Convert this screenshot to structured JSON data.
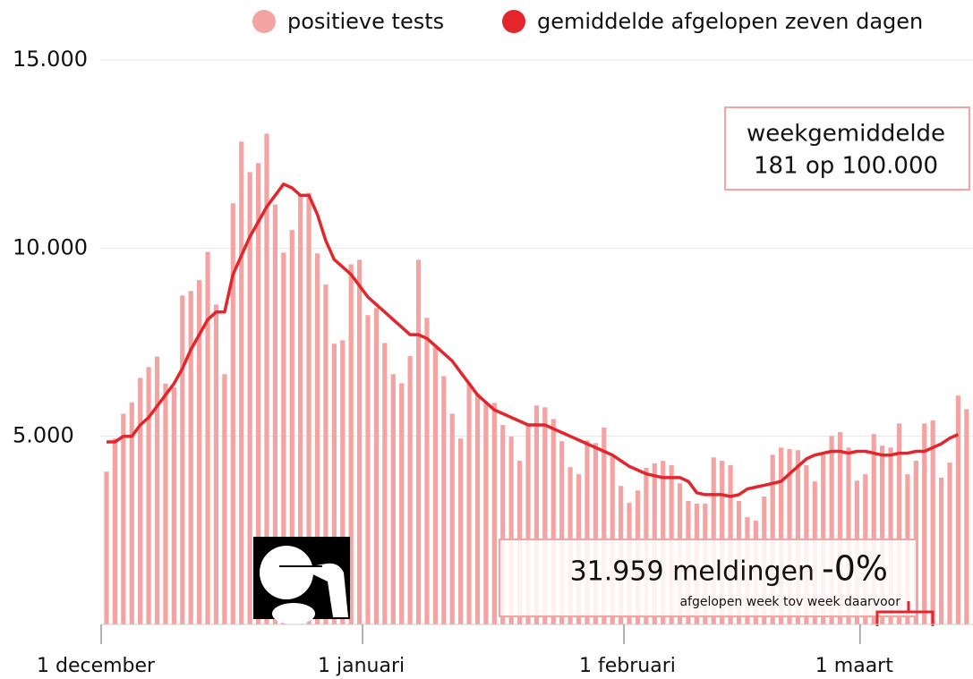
{
  "chart_data": {
    "type": "bar+line",
    "categories": [
      "1 december",
      null,
      null,
      null,
      null,
      null,
      null,
      null,
      null,
      null,
      null,
      null,
      null,
      null,
      null,
      null,
      null,
      null,
      null,
      null,
      null,
      null,
      null,
      null,
      null,
      null,
      null,
      null,
      null,
      null,
      null,
      "1 januari",
      null,
      null,
      null,
      null,
      null,
      null,
      null,
      null,
      null,
      null,
      null,
      null,
      null,
      null,
      null,
      null,
      null,
      null,
      null,
      null,
      null,
      null,
      null,
      null,
      null,
      null,
      null,
      null,
      null,
      null,
      "1 februari",
      null,
      null,
      null,
      null,
      null,
      null,
      null,
      null,
      null,
      null,
      null,
      null,
      null,
      null,
      null,
      null,
      null,
      null,
      null,
      null,
      null,
      null,
      null,
      null,
      null,
      null,
      null,
      "1 maart",
      null,
      null,
      null,
      null,
      null,
      null,
      null,
      null,
      null,
      null,
      null,
      null
    ],
    "series": [
      {
        "name": "positieve tests",
        "color": "#f4a3a3",
        "kind": "bar",
        "values": [
          4060,
          4940,
          5600,
          5900,
          6550,
          6840,
          7120,
          6400,
          6300,
          8740,
          8860,
          9150,
          9900,
          8500,
          6650,
          11190,
          12830,
          12020,
          12260,
          13040,
          11160,
          9880,
          10480,
          11430,
          11470,
          9860,
          9030,
          7460,
          7550,
          9570,
          9690,
          8220,
          8410,
          7480,
          6650,
          6410,
          7130,
          9690,
          8150,
          7360,
          6600,
          5600,
          4940,
          6410,
          6130,
          5890,
          5890,
          5300,
          4990,
          4350,
          5340,
          5820,
          5770,
          5460,
          4870,
          4180,
          3990,
          4890,
          4820,
          5230,
          4470,
          3680,
          3230,
          3560,
          4160,
          4280,
          4350,
          4230,
          3750,
          3280,
          3210,
          3210,
          4440,
          4350,
          4230,
          3280,
          2850,
          2760,
          3400,
          4510,
          4700,
          4660,
          4630,
          4230,
          3800,
          4510,
          5010,
          5110,
          4700,
          3820,
          3990,
          5060,
          4750,
          4700,
          5340,
          3990,
          4350,
          5340,
          5420,
          3900,
          4300,
          6080,
          5720
        ]
      },
      {
        "name": "gemiddelde afgelopen zeven dagen",
        "color": "#e3262b",
        "kind": "line",
        "values": [
          4850,
          4850,
          5000,
          5000,
          5300,
          5500,
          5800,
          6100,
          6400,
          6800,
          7300,
          7700,
          8100,
          8300,
          8300,
          9300,
          9800,
          10300,
          10700,
          11100,
          11400,
          11700,
          11600,
          11400,
          11400,
          10900,
          10200,
          9700,
          9500,
          9300,
          9000,
          8700,
          8500,
          8300,
          8100,
          7900,
          7700,
          7700,
          7600,
          7400,
          7200,
          7000,
          6700,
          6400,
          6100,
          5900,
          5700,
          5600,
          5500,
          5400,
          5300,
          5300,
          5300,
          5200,
          5100,
          5000,
          4900,
          4800,
          4700,
          4600,
          4500,
          4350,
          4200,
          4100,
          4000,
          3950,
          3900,
          3900,
          3900,
          3800,
          3500,
          3450,
          3450,
          3450,
          3400,
          3450,
          3600,
          3650,
          3700,
          3750,
          3800,
          4000,
          4200,
          4400,
          4500,
          4550,
          4600,
          4600,
          4550,
          4600,
          4600,
          4550,
          4500,
          4500,
          4550,
          4550,
          4600,
          4600,
          4700,
          4800,
          4950,
          5050,
          null
        ]
      }
    ],
    "ylim": [
      0,
      15000
    ],
    "yticks": [
      {
        "value": 5000,
        "label": "5.000"
      },
      {
        "value": 10000,
        "label": "10.000"
      },
      {
        "value": 15000,
        "label": "15.000"
      }
    ],
    "grid": true,
    "legend": "top",
    "annotations": [
      "weekgemiddelde",
      "181 op 100.000",
      "31.959 meldingen",
      "-0%",
      "afgelopen week tov week daarvoor"
    ]
  }
}
